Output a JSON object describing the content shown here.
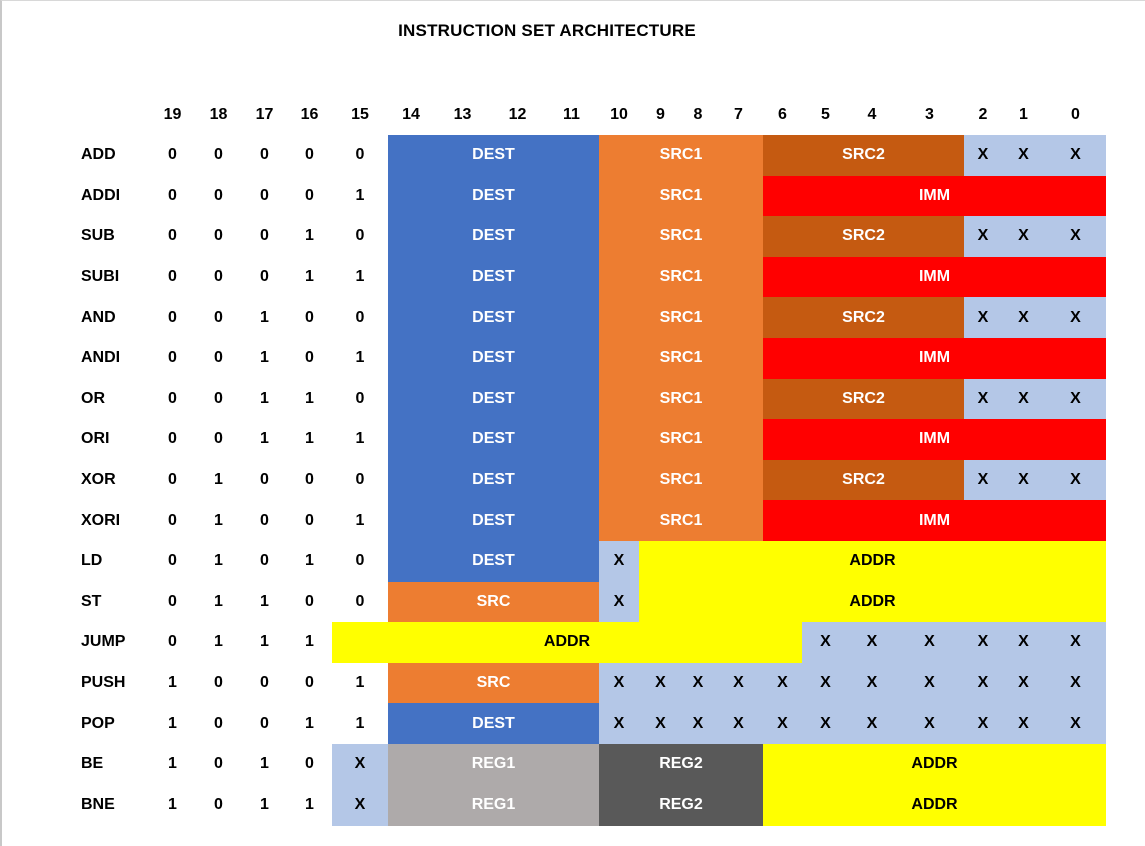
{
  "title": "INSTRUCTION SET ARCHITECTURE",
  "colors": {
    "blue": "#4472C4",
    "orange": "#ED7D31",
    "brown": "#C55A11",
    "red": "#FF0000",
    "lightblue": "#B4C7E7",
    "yellow": "#FFFF00",
    "gray": "#AEAAAA",
    "darkgray": "#595959"
  },
  "bit_header": [
    "19",
    "18",
    "17",
    "16",
    "15",
    "14",
    "13",
    "12",
    "11",
    "10",
    "9",
    "8",
    "7",
    "6",
    "5",
    "4",
    "3",
    "2",
    "1",
    "0"
  ],
  "rows": [
    {
      "name": "ADD",
      "bits": [
        "0",
        "0",
        "0",
        "0",
        "0"
      ],
      "fields": [
        {
          "label": "DEST",
          "from": 14,
          "to": 11,
          "color": "blue",
          "white": true
        },
        {
          "label": "SRC1",
          "from": 10,
          "to": 7,
          "color": "orange",
          "white": true
        },
        {
          "label": "SRC2",
          "from": 6,
          "to": 3,
          "color": "brown",
          "white": true
        },
        {
          "from": 2,
          "to": 0,
          "color": "lightblue",
          "dontcare": [
            "X",
            "X",
            "X"
          ]
        }
      ]
    },
    {
      "name": "ADDI",
      "bits": [
        "0",
        "0",
        "0",
        "0",
        "1"
      ],
      "fields": [
        {
          "label": "DEST",
          "from": 14,
          "to": 11,
          "color": "blue",
          "white": true
        },
        {
          "label": "SRC1",
          "from": 10,
          "to": 7,
          "color": "orange",
          "white": true
        },
        {
          "label": "IMM",
          "from": 6,
          "to": 0,
          "color": "red",
          "white": true
        }
      ]
    },
    {
      "name": "SUB",
      "bits": [
        "0",
        "0",
        "0",
        "1",
        "0"
      ],
      "fields": [
        {
          "label": "DEST",
          "from": 14,
          "to": 11,
          "color": "blue",
          "white": true
        },
        {
          "label": "SRC1",
          "from": 10,
          "to": 7,
          "color": "orange",
          "white": true
        },
        {
          "label": "SRC2",
          "from": 6,
          "to": 3,
          "color": "brown",
          "white": true
        },
        {
          "from": 2,
          "to": 0,
          "color": "lightblue",
          "dontcare": [
            "X",
            "X",
            "X"
          ]
        }
      ]
    },
    {
      "name": "SUBI",
      "bits": [
        "0",
        "0",
        "0",
        "1",
        "1"
      ],
      "fields": [
        {
          "label": "DEST",
          "from": 14,
          "to": 11,
          "color": "blue",
          "white": true
        },
        {
          "label": "SRC1",
          "from": 10,
          "to": 7,
          "color": "orange",
          "white": true
        },
        {
          "label": "IMM",
          "from": 6,
          "to": 0,
          "color": "red",
          "white": true
        }
      ]
    },
    {
      "name": "AND",
      "bits": [
        "0",
        "0",
        "1",
        "0",
        "0"
      ],
      "fields": [
        {
          "label": "DEST",
          "from": 14,
          "to": 11,
          "color": "blue",
          "white": true
        },
        {
          "label": "SRC1",
          "from": 10,
          "to": 7,
          "color": "orange",
          "white": true
        },
        {
          "label": "SRC2",
          "from": 6,
          "to": 3,
          "color": "brown",
          "white": true
        },
        {
          "from": 2,
          "to": 0,
          "color": "lightblue",
          "dontcare": [
            "X",
            "X",
            "X"
          ]
        }
      ]
    },
    {
      "name": "ANDI",
      "bits": [
        "0",
        "0",
        "1",
        "0",
        "1"
      ],
      "fields": [
        {
          "label": "DEST",
          "from": 14,
          "to": 11,
          "color": "blue",
          "white": true
        },
        {
          "label": "SRC1",
          "from": 10,
          "to": 7,
          "color": "orange",
          "white": true
        },
        {
          "label": "IMM",
          "from": 6,
          "to": 0,
          "color": "red",
          "white": true
        }
      ]
    },
    {
      "name": "OR",
      "bits": [
        "0",
        "0",
        "1",
        "1",
        "0"
      ],
      "fields": [
        {
          "label": "DEST",
          "from": 14,
          "to": 11,
          "color": "blue",
          "white": true
        },
        {
          "label": "SRC1",
          "from": 10,
          "to": 7,
          "color": "orange",
          "white": true
        },
        {
          "label": "SRC2",
          "from": 6,
          "to": 3,
          "color": "brown",
          "white": true
        },
        {
          "from": 2,
          "to": 0,
          "color": "lightblue",
          "dontcare": [
            "X",
            "X",
            "X"
          ]
        }
      ]
    },
    {
      "name": "ORI",
      "bits": [
        "0",
        "0",
        "1",
        "1",
        "1"
      ],
      "fields": [
        {
          "label": "DEST",
          "from": 14,
          "to": 11,
          "color": "blue",
          "white": true
        },
        {
          "label": "SRC1",
          "from": 10,
          "to": 7,
          "color": "orange",
          "white": true
        },
        {
          "label": "IMM",
          "from": 6,
          "to": 0,
          "color": "red",
          "white": true
        }
      ]
    },
    {
      "name": "XOR",
      "bits": [
        "0",
        "1",
        "0",
        "0",
        "0"
      ],
      "fields": [
        {
          "label": "DEST",
          "from": 14,
          "to": 11,
          "color": "blue",
          "white": true
        },
        {
          "label": "SRC1",
          "from": 10,
          "to": 7,
          "color": "orange",
          "white": true
        },
        {
          "label": "SRC2",
          "from": 6,
          "to": 3,
          "color": "brown",
          "white": true
        },
        {
          "from": 2,
          "to": 0,
          "color": "lightblue",
          "dontcare": [
            "X",
            "X",
            "X"
          ]
        }
      ]
    },
    {
      "name": "XORI",
      "bits": [
        "0",
        "1",
        "0",
        "0",
        "1"
      ],
      "fields": [
        {
          "label": "DEST",
          "from": 14,
          "to": 11,
          "color": "blue",
          "white": true
        },
        {
          "label": "SRC1",
          "from": 10,
          "to": 7,
          "color": "orange",
          "white": true
        },
        {
          "label": "IMM",
          "from": 6,
          "to": 0,
          "color": "red",
          "white": true
        }
      ]
    },
    {
      "name": "LD",
      "bits": [
        "0",
        "1",
        "0",
        "1",
        "0"
      ],
      "fields": [
        {
          "label": "DEST",
          "from": 14,
          "to": 11,
          "color": "blue",
          "white": true
        },
        {
          "from": 10,
          "to": 10,
          "color": "lightblue",
          "dontcare": [
            "X"
          ]
        },
        {
          "label": "ADDR",
          "from": 9,
          "to": 0,
          "color": "yellow"
        }
      ]
    },
    {
      "name": "ST",
      "bits": [
        "0",
        "1",
        "1",
        "0",
        "0"
      ],
      "fields": [
        {
          "label": "SRC",
          "from": 14,
          "to": 11,
          "color": "orange",
          "white": true
        },
        {
          "from": 10,
          "to": 10,
          "color": "lightblue",
          "dontcare": [
            "X"
          ]
        },
        {
          "label": "ADDR",
          "from": 9,
          "to": 0,
          "color": "yellow"
        }
      ]
    },
    {
      "name": "JUMP",
      "bits": [
        "0",
        "1",
        "1",
        "1",
        ""
      ],
      "fields": [
        {
          "label": "ADDR",
          "from": 15,
          "to": 6,
          "color": "yellow"
        },
        {
          "from": 5,
          "to": 0,
          "color": "lightblue",
          "dontcare": [
            "X",
            "X",
            "X",
            "X",
            "X",
            "X"
          ]
        }
      ]
    },
    {
      "name": "PUSH",
      "bits": [
        "1",
        "0",
        "0",
        "0",
        "1"
      ],
      "fields": [
        {
          "label": "SRC",
          "from": 14,
          "to": 11,
          "color": "orange",
          "white": true
        },
        {
          "from": 10,
          "to": 0,
          "color": "lightblue",
          "dontcare": [
            "X",
            "X",
            "X",
            "X",
            "X",
            "X",
            "X",
            "X",
            "X",
            "X",
            "X"
          ]
        }
      ]
    },
    {
      "name": "POP",
      "bits": [
        "1",
        "0",
        "0",
        "1",
        "1"
      ],
      "fields": [
        {
          "label": "DEST",
          "from": 14,
          "to": 11,
          "color": "blue",
          "white": true
        },
        {
          "from": 10,
          "to": 0,
          "color": "lightblue",
          "dontcare": [
            "X",
            "X",
            "X",
            "X",
            "X",
            "X",
            "X",
            "X",
            "X",
            "X",
            "X"
          ]
        }
      ]
    },
    {
      "name": "BE",
      "bits": [
        "1",
        "0",
        "1",
        "0",
        ""
      ],
      "fields": [
        {
          "from": 15,
          "to": 15,
          "color": "lightblue",
          "dontcare": [
            "X"
          ]
        },
        {
          "label": "REG1",
          "from": 14,
          "to": 11,
          "color": "gray",
          "white": true
        },
        {
          "label": "REG2",
          "from": 10,
          "to": 7,
          "color": "darkgray",
          "white": true
        },
        {
          "label": "ADDR",
          "from": 6,
          "to": 0,
          "color": "yellow"
        }
      ]
    },
    {
      "name": "BNE",
      "bits": [
        "1",
        "0",
        "1",
        "1",
        ""
      ],
      "fields": [
        {
          "from": 15,
          "to": 15,
          "color": "lightblue",
          "dontcare": [
            "X"
          ]
        },
        {
          "label": "REG1",
          "from": 14,
          "to": 11,
          "color": "gray",
          "white": true
        },
        {
          "label": "REG2",
          "from": 10,
          "to": 7,
          "color": "darkgray",
          "white": true
        },
        {
          "label": "ADDR",
          "from": 6,
          "to": 0,
          "color": "yellow"
        }
      ]
    }
  ]
}
